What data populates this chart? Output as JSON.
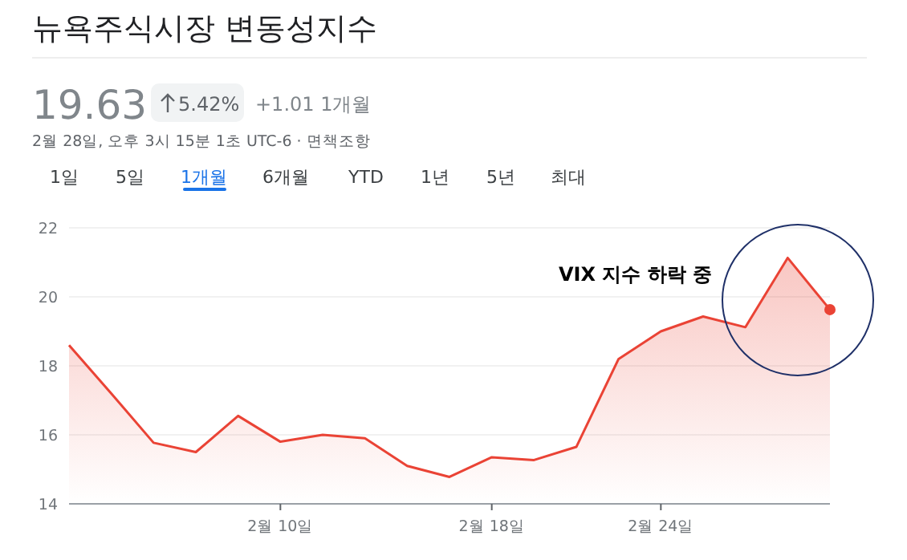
{
  "chart_data": {
    "type": "area",
    "title": "뉴욕주식시장 변동성지수",
    "subtitle": "2월 28일, 오후 3시 15분 1초 UTC-6 · 면책조항",
    "categories": [
      null,
      null,
      null,
      null,
      null,
      "2월 10일",
      null,
      null,
      null,
      null,
      "2월 18일",
      null,
      null,
      null,
      "2월 24일",
      null,
      null,
      null,
      null
    ],
    "series": [
      {
        "color": "#ea4335",
        "values": [
          18.6,
          17.2,
          15.77,
          15.5,
          16.55,
          15.8,
          16.0,
          15.9,
          15.1,
          14.78,
          15.35,
          15.27,
          15.65,
          18.2,
          19.0,
          19.43,
          19.12,
          21.13,
          19.63
        ]
      }
    ],
    "ylim": [
      14,
      22
    ],
    "yticks": [
      14,
      16,
      18,
      20,
      22
    ],
    "grid": "y",
    "annotations": [
      "19.63",
      "5.42%",
      "+1.01 1개월",
      "1일",
      "5일",
      "1개월",
      "6개월",
      "YTD",
      "1년",
      "5년",
      "최대",
      "VIX 지수 하락 중"
    ]
  }
}
